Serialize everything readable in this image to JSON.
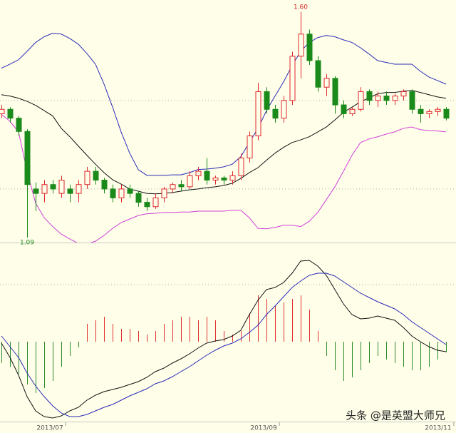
{
  "chart_data": [
    {
      "type": "candlestick",
      "xlim": [
        -0.1667,
        53.1667
      ],
      "ylim": [
        1.079,
        1.627
      ],
      "gridlines": [
        1.2,
        1.4
      ],
      "up_color": "#e0262d",
      "down_color": "#1a8a1a",
      "open": [
        1.37,
        1.38,
        1.36,
        1.33,
        1.2,
        1.19,
        1.21,
        1.19,
        1.2,
        1.19,
        1.21,
        1.24,
        1.22,
        1.2,
        1.18,
        1.2,
        1.19,
        1.17,
        1.16,
        1.18,
        1.2,
        1.21,
        1.205,
        1.23,
        1.24,
        1.22,
        1.225,
        1.22,
        1.23,
        1.27,
        1.32,
        1.42,
        1.38,
        1.36,
        1.4,
        1.5,
        1.55,
        1.49,
        1.43,
        1.45,
        1.39,
        1.37,
        1.38,
        1.42,
        1.4,
        1.41,
        1.4,
        1.41,
        1.42,
        1.38,
        1.37,
        1.375,
        1.38
      ],
      "high": [
        1.39,
        1.385,
        1.365,
        1.335,
        1.215,
        1.22,
        1.22,
        1.23,
        1.21,
        1.22,
        1.25,
        1.25,
        1.225,
        1.21,
        1.21,
        1.21,
        1.195,
        1.18,
        1.19,
        1.205,
        1.215,
        1.22,
        1.24,
        1.25,
        1.27,
        1.23,
        1.23,
        1.24,
        1.28,
        1.33,
        1.44,
        1.43,
        1.39,
        1.41,
        1.51,
        1.6,
        1.56,
        1.5,
        1.46,
        1.455,
        1.4,
        1.385,
        1.43,
        1.425,
        1.42,
        1.42,
        1.415,
        1.425,
        1.425,
        1.39,
        1.38,
        1.385,
        1.385
      ],
      "low": [
        1.36,
        1.35,
        1.32,
        1.09,
        1.15,
        1.17,
        1.19,
        1.18,
        1.17,
        1.17,
        1.2,
        1.21,
        1.19,
        1.17,
        1.17,
        1.18,
        1.16,
        1.15,
        1.155,
        1.17,
        1.19,
        1.195,
        1.2,
        1.22,
        1.21,
        1.21,
        1.21,
        1.21,
        1.22,
        1.26,
        1.31,
        1.37,
        1.35,
        1.35,
        1.39,
        1.45,
        1.48,
        1.42,
        1.41,
        1.37,
        1.36,
        1.365,
        1.375,
        1.39,
        1.385,
        1.39,
        1.39,
        1.4,
        1.37,
        1.35,
        1.36,
        1.365,
        1.355
      ],
      "close": [
        1.38,
        1.36,
        1.33,
        1.21,
        1.19,
        1.21,
        1.2,
        1.22,
        1.19,
        1.21,
        1.24,
        1.22,
        1.2,
        1.18,
        1.2,
        1.19,
        1.17,
        1.16,
        1.18,
        1.2,
        1.21,
        1.205,
        1.23,
        1.24,
        1.22,
        1.225,
        1.22,
        1.23,
        1.27,
        1.32,
        1.42,
        1.38,
        1.36,
        1.4,
        1.5,
        1.55,
        1.49,
        1.43,
        1.45,
        1.39,
        1.37,
        1.38,
        1.42,
        1.4,
        1.41,
        1.4,
        1.41,
        1.42,
        1.38,
        1.37,
        1.375,
        1.38,
        1.36
      ],
      "bands": [
        {
          "color": "#2b2bb8",
          "values": [
            1.473,
            1.482,
            1.492,
            1.511,
            1.531,
            1.544,
            1.552,
            1.55,
            1.54,
            1.527,
            1.506,
            1.482,
            1.437,
            1.385,
            1.329,
            1.281,
            1.244,
            1.231,
            1.231,
            1.231,
            1.232,
            1.232,
            1.237,
            1.244,
            1.245,
            1.247,
            1.25,
            1.256,
            1.273,
            1.305,
            1.337,
            1.377,
            1.41,
            1.442,
            1.479,
            1.511,
            1.531,
            1.542,
            1.547,
            1.544,
            1.537,
            1.531,
            1.519,
            1.505,
            1.49,
            1.486,
            1.482,
            1.482,
            1.482,
            1.466,
            1.453,
            1.445,
            1.437
          ]
        },
        {
          "color": "#111111",
          "values": [
            1.413,
            1.41,
            1.405,
            1.398,
            1.389,
            1.377,
            1.365,
            1.337,
            1.318,
            1.297,
            1.276,
            1.256,
            1.237,
            1.221,
            1.211,
            1.2,
            1.195,
            1.19,
            1.189,
            1.19,
            1.192,
            1.195,
            1.198,
            1.2,
            1.203,
            1.205,
            1.208,
            1.213,
            1.224,
            1.237,
            1.248,
            1.265,
            1.281,
            1.294,
            1.305,
            1.311,
            1.318,
            1.329,
            1.34,
            1.356,
            1.373,
            1.385,
            1.397,
            1.406,
            1.415,
            1.418,
            1.418,
            1.421,
            1.423,
            1.418,
            1.413,
            1.408,
            1.405
          ]
        },
        {
          "color": "#d040d8",
          "values": [
            1.369,
            1.353,
            1.329,
            1.24,
            1.168,
            1.135,
            1.115,
            1.098,
            1.087,
            1.077,
            1.076,
            1.082,
            1.095,
            1.111,
            1.124,
            1.132,
            1.14,
            1.144,
            1.145,
            1.147,
            1.147,
            1.148,
            1.148,
            1.15,
            1.15,
            1.15,
            1.15,
            1.152,
            1.152,
            1.135,
            1.111,
            1.11,
            1.113,
            1.118,
            1.118,
            1.115,
            1.127,
            1.147,
            1.176,
            1.205,
            1.24,
            1.276,
            1.305,
            1.313,
            1.318,
            1.324,
            1.329,
            1.337,
            1.34,
            1.334,
            1.332,
            1.331,
            1.329
          ]
        }
      ],
      "annotations": [
        {
          "index": 35,
          "value": 1.6,
          "label": "1.60",
          "color": "#d02020"
        },
        {
          "index": 3,
          "value": 1.09,
          "label": "1.09",
          "color": "#1a8a1a"
        }
      ]
    },
    {
      "type": "macd",
      "xlim": [
        -0.1667,
        53.1667
      ],
      "ylim": [
        -0.112,
        0.138
      ],
      "gridlines": [
        0.08
      ],
      "pos_color": "#e03030",
      "neg_color": "#2a8a2a",
      "histogram": [
        -0.03,
        -0.035,
        -0.045,
        -0.06,
        -0.072,
        -0.065,
        -0.055,
        -0.035,
        -0.02,
        -0.008,
        0.025,
        0.03,
        0.035,
        0.025,
        0.018,
        0.018,
        0.015,
        0.01,
        0.015,
        0.025,
        0.03,
        0.035,
        0.035,
        0.03,
        0.035,
        0.03,
        0.015,
        0.01,
        0.015,
        0.04,
        0.065,
        0.06,
        0.05,
        0.055,
        0.06,
        0.065,
        0.045,
        0.015,
        -0.02,
        -0.04,
        -0.055,
        -0.05,
        -0.04,
        -0.03,
        -0.02,
        -0.025,
        -0.03,
        -0.035,
        -0.04,
        -0.04,
        -0.035,
        -0.025,
        -0.015
      ],
      "lines": [
        {
          "color": "#111111",
          "values": [
            -0.002,
            -0.022,
            -0.047,
            -0.077,
            -0.097,
            -0.105,
            -0.107,
            -0.104,
            -0.097,
            -0.092,
            -0.082,
            -0.075,
            -0.07,
            -0.067,
            -0.064,
            -0.06,
            -0.056,
            -0.05,
            -0.042,
            -0.037,
            -0.03,
            -0.024,
            -0.017,
            -0.009,
            -0.002,
            0.001,
            0.003,
            0.008,
            0.016,
            0.038,
            0.058,
            0.073,
            0.076,
            0.083,
            0.096,
            0.113,
            0.114,
            0.106,
            0.093,
            0.073,
            0.053,
            0.038,
            0.032,
            0.033,
            0.036,
            0.033,
            0.03,
            0.02,
            0.008,
            0.0,
            -0.007,
            -0.012,
            -0.014
          ]
        },
        {
          "color": "#2b2bb8",
          "values": [
            0.008,
            -0.007,
            -0.022,
            -0.044,
            -0.062,
            -0.077,
            -0.09,
            -0.1,
            -0.105,
            -0.105,
            -0.102,
            -0.097,
            -0.092,
            -0.088,
            -0.082,
            -0.076,
            -0.071,
            -0.066,
            -0.059,
            -0.055,
            -0.049,
            -0.042,
            -0.035,
            -0.027,
            -0.019,
            -0.012,
            -0.006,
            -0.002,
            0.004,
            0.013,
            0.023,
            0.038,
            0.05,
            0.063,
            0.076,
            0.085,
            0.093,
            0.096,
            0.096,
            0.092,
            0.084,
            0.076,
            0.068,
            0.062,
            0.056,
            0.051,
            0.046,
            0.038,
            0.028,
            0.02,
            0.012,
            0.004,
            -0.004
          ]
        }
      ],
      "xticks": [
        {
          "value": 5.67,
          "label": "2013/07"
        },
        {
          "value": 30.67,
          "label": "2013/09"
        },
        {
          "value": 51.08,
          "label": "2013/11"
        }
      ]
    }
  ],
  "watermark": "头条 @是英盟大师兄"
}
